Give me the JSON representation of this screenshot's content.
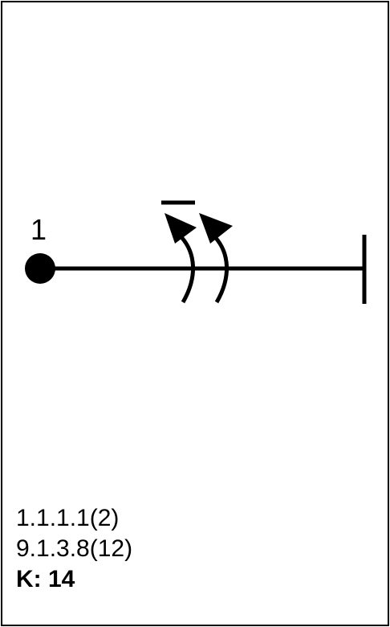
{
  "diagram": {
    "node_label": "1",
    "codes": [
      "1.1.1.1(2)",
      "9.1.3.8(12)"
    ],
    "k_label": "K: 14",
    "stroke_color": "#000000"
  }
}
